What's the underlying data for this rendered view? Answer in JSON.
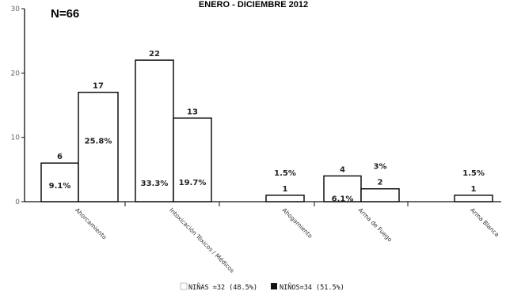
{
  "chart_data": {
    "type": "bar",
    "title": "ENERO - DICIEMBRE 2012",
    "annotation_n": "N=66",
    "categories": [
      "Ahorcamiento",
      "Intoxicación Tóxicos / Médicos",
      "Ahogamiento",
      "Arma de Fuego",
      "Arma Blanca"
    ],
    "series": [
      {
        "name": "NIÑAS =32 (48.5%)",
        "values": [
          6,
          22,
          0,
          4,
          0
        ],
        "percent_labels": [
          "9.1%",
          "33.3%",
          "",
          "6.1%",
          ""
        ],
        "color": "#ffffff"
      },
      {
        "name": "NIÑOS=34 (51.5%)",
        "values": [
          17,
          13,
          1,
          2,
          1
        ],
        "percent_labels": [
          "25.8%",
          "19.7%",
          "1.5%",
          "3%",
          "1.5%"
        ],
        "color": "#ffffff"
      }
    ],
    "ylim": [
      0,
      30
    ],
    "yticks": [
      "0",
      "10",
      "20",
      "30"
    ],
    "xlabel": "",
    "ylabel": "",
    "legend_position": "bottom",
    "legend_swatch_colors": [
      "#ffffff",
      "#111111"
    ],
    "grid": false
  }
}
